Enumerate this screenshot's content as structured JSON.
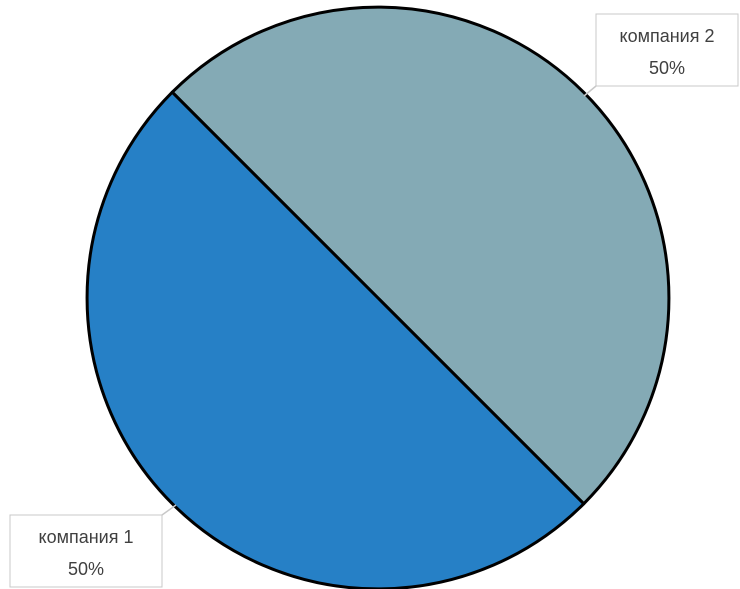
{
  "chart_data": {
    "type": "pie",
    "categories": [
      "компания 1",
      "компания 2"
    ],
    "values": [
      50,
      50
    ],
    "value_labels": [
      "50%",
      "50%"
    ],
    "colors": [
      "#2680C6",
      "#84AAB5"
    ],
    "slice_outline_color": "#000000",
    "title": "",
    "legend": "none",
    "data_labels": "outside callouts with leader lines"
  }
}
